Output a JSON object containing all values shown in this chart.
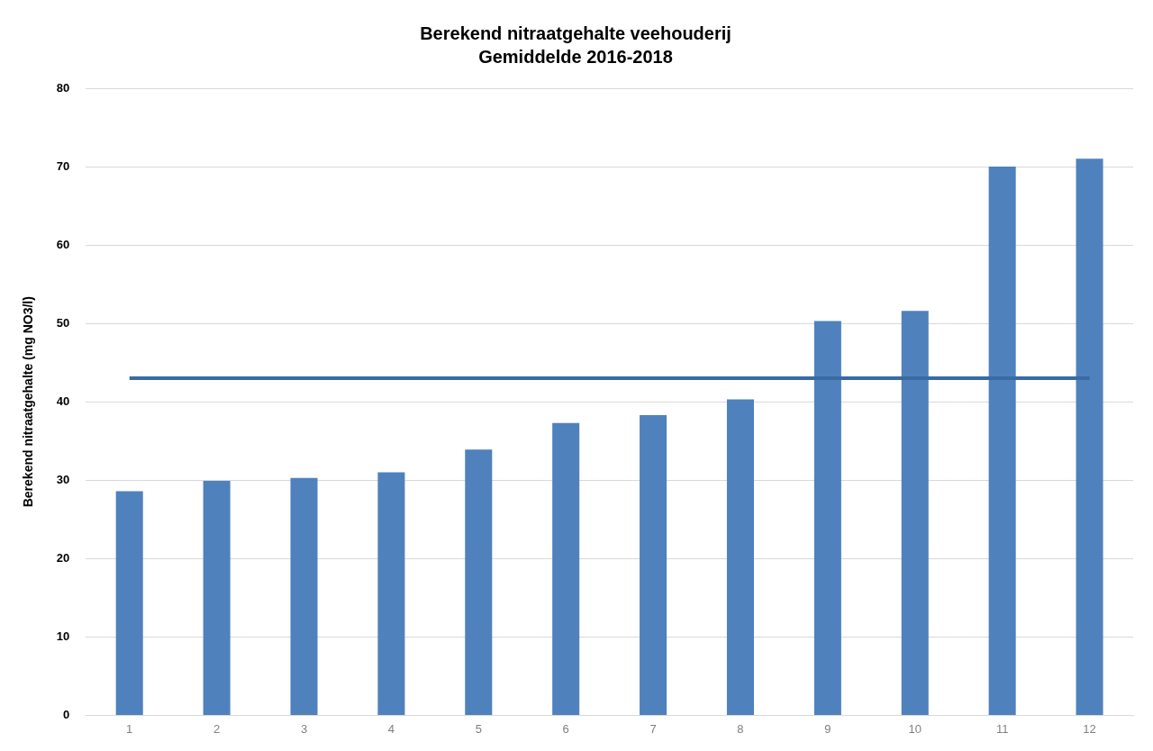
{
  "chart_data": {
    "type": "bar",
    "title": "Berekend nitraatgehalte veehouderij",
    "subtitle": "Gemiddelde 2016-2018",
    "ylabel": "Berekend nitraatgehalte (mg NO3/l)",
    "categories": [
      "1",
      "2",
      "3",
      "4",
      "5",
      "6",
      "7",
      "8",
      "9",
      "10",
      "11",
      "12"
    ],
    "series": [
      {
        "color": "#4f81bd",
        "values": [
          28.6,
          29.9,
          30.3,
          31.0,
          33.9,
          37.3,
          38.3,
          40.3,
          50.3,
          51.6,
          70.0,
          71.0
        ]
      },
      {
        "type": "line",
        "color": "#3a6aa3",
        "values": [
          43,
          43,
          43,
          43,
          43,
          43,
          43,
          43,
          43,
          43,
          43,
          43
        ]
      }
    ],
    "ylim": [
      0,
      80
    ],
    "yticks": [
      0,
      10,
      20,
      30,
      40,
      50,
      60,
      70,
      80
    ],
    "grid": "y",
    "legend": false,
    "marker": "none"
  }
}
